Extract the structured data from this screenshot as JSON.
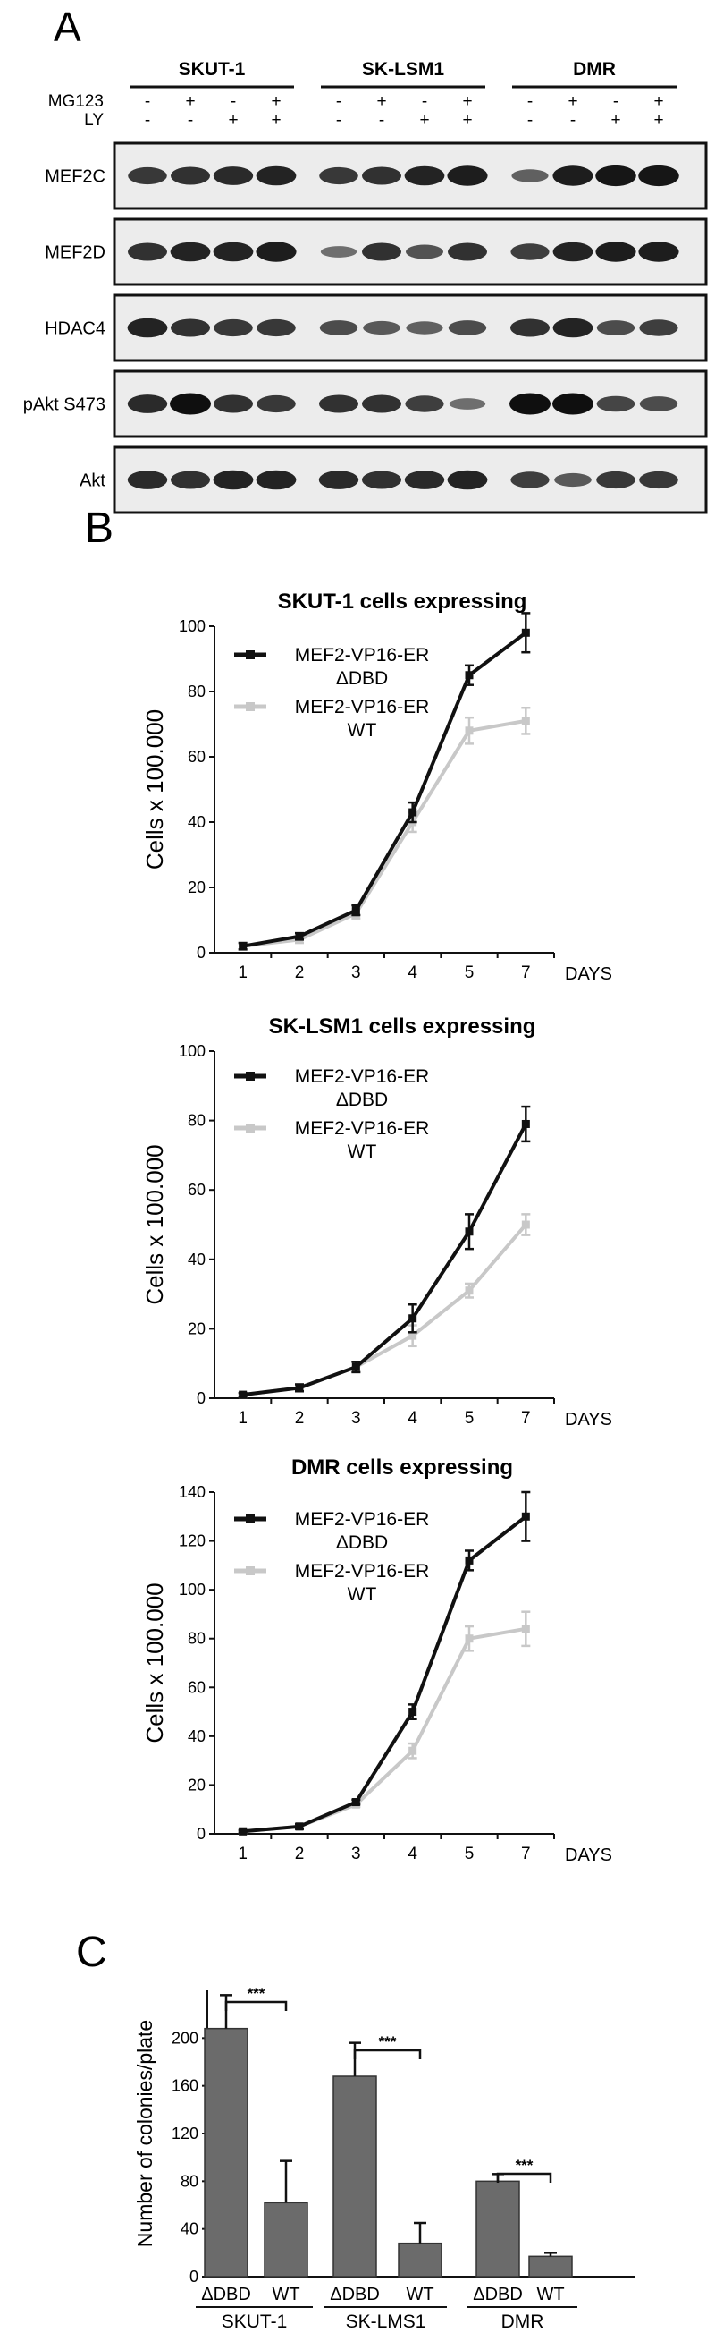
{
  "panel_a": {
    "label": "A",
    "groups": [
      "SKUT-1",
      "SK-LSM1",
      "DMR"
    ],
    "treatment_rows": [
      {
        "name": "MG123",
        "values": [
          "-",
          "+",
          "-",
          "+",
          "-",
          "+",
          "-",
          "+",
          "-",
          "+",
          "-",
          "+"
        ]
      },
      {
        "name": "LY",
        "values": [
          "-",
          "-",
          "+",
          "+",
          "-",
          "-",
          "+",
          "+",
          "-",
          "-",
          "+",
          "+"
        ]
      }
    ],
    "blots": [
      {
        "name": "MEF2C",
        "intensity": [
          0.7,
          0.75,
          0.8,
          0.85,
          0.7,
          0.75,
          0.85,
          0.9,
          0.4,
          0.9,
          0.95,
          0.95
        ]
      },
      {
        "name": "MEF2D",
        "intensity": [
          0.75,
          0.85,
          0.85,
          0.9,
          0.3,
          0.75,
          0.5,
          0.75,
          0.65,
          0.85,
          0.9,
          0.9
        ]
      },
      {
        "name": "HDAC4",
        "intensity": [
          0.85,
          0.75,
          0.7,
          0.7,
          0.55,
          0.45,
          0.4,
          0.55,
          0.75,
          0.85,
          0.55,
          0.65
        ]
      },
      {
        "name": "pAkt S473",
        "intensity": [
          0.8,
          1.0,
          0.75,
          0.7,
          0.75,
          0.75,
          0.65,
          0.3,
          1.0,
          1.0,
          0.6,
          0.55
        ]
      },
      {
        "name": "Akt",
        "intensity": [
          0.8,
          0.75,
          0.85,
          0.85,
          0.8,
          0.75,
          0.8,
          0.85,
          0.65,
          0.45,
          0.7,
          0.7
        ]
      }
    ]
  },
  "panel_b_label": "B",
  "panel_c_label": "C",
  "chart_data": [
    {
      "type": "line",
      "title": "SKUT-1 cells expressing",
      "xlabel": "DAYS",
      "ylabel": "Cells x 100.000",
      "x": [
        "1",
        "2",
        "3",
        "4",
        "5",
        "7"
      ],
      "ylim": [
        0,
        100
      ],
      "yticks": [
        0,
        20,
        40,
        60,
        80,
        100
      ],
      "series": [
        {
          "name": "MEF2-VP16-ER ΔDBD",
          "color": "#111111",
          "values": [
            2,
            5,
            13,
            43,
            85,
            98
          ],
          "errors": [
            1,
            1,
            1.5,
            3,
            3,
            6
          ]
        },
        {
          "name": "MEF2-VP16-ER WT",
          "color": "#c8c8c8",
          "values": [
            2,
            4,
            12,
            40,
            68,
            71
          ],
          "errors": [
            1,
            1,
            1.5,
            3,
            4,
            4
          ]
        }
      ]
    },
    {
      "type": "line",
      "title": "SK-LSM1 cells expressing",
      "xlabel": "DAYS",
      "ylabel": "Cells x 100.000",
      "x": [
        "1",
        "2",
        "3",
        "4",
        "5",
        "7"
      ],
      "ylim": [
        0,
        100
      ],
      "yticks": [
        0,
        20,
        40,
        60,
        80,
        100
      ],
      "series": [
        {
          "name": "MEF2-VP16-ER ΔDBD",
          "color": "#111111",
          "values": [
            1,
            3,
            9,
            23,
            48,
            79
          ],
          "errors": [
            0.5,
            1,
            1.5,
            4,
            5,
            5
          ]
        },
        {
          "name": "MEF2-VP16-ER WT",
          "color": "#c8c8c8",
          "values": [
            1,
            3,
            9,
            18,
            31,
            50
          ],
          "errors": [
            0.5,
            1,
            1.5,
            3,
            2,
            3
          ]
        }
      ]
    },
    {
      "type": "line",
      "title": "DMR cells expressing",
      "xlabel": "DAYS",
      "ylabel": "Cells x 100.000",
      "x": [
        "1",
        "2",
        "3",
        "4",
        "5",
        "7"
      ],
      "ylim": [
        0,
        140
      ],
      "yticks": [
        0,
        20,
        40,
        60,
        80,
        100,
        120,
        140
      ],
      "series": [
        {
          "name": "MEF2-VP16-ER ΔDBD",
          "color": "#111111",
          "values": [
            1,
            3,
            13,
            50,
            112,
            130
          ],
          "errors": [
            0.5,
            1,
            1,
            3,
            4,
            10
          ]
        },
        {
          "name": "MEF2-VP16-ER WT",
          "color": "#c8c8c8",
          "values": [
            1,
            3,
            12,
            34,
            80,
            84
          ],
          "errors": [
            0.5,
            1,
            1,
            3,
            5,
            7
          ]
        }
      ]
    },
    {
      "type": "bar",
      "ylabel": "Number of colonies/plate",
      "ylim": [
        0,
        240
      ],
      "yticks": [
        0,
        40,
        80,
        120,
        160,
        200
      ],
      "categories": [
        "ΔDBD",
        "WT",
        "ΔDBD",
        "WT",
        "ΔDBD",
        "WT"
      ],
      "groups": [
        "SKUT-1",
        "SK-LMS1",
        "DMR"
      ],
      "values": [
        208,
        62,
        168,
        28,
        80,
        17
      ],
      "errors": [
        28,
        35,
        28,
        17,
        6,
        3
      ],
      "significance": [
        "***",
        "***",
        "***"
      ],
      "bar_color": "#6b6b6b"
    }
  ]
}
